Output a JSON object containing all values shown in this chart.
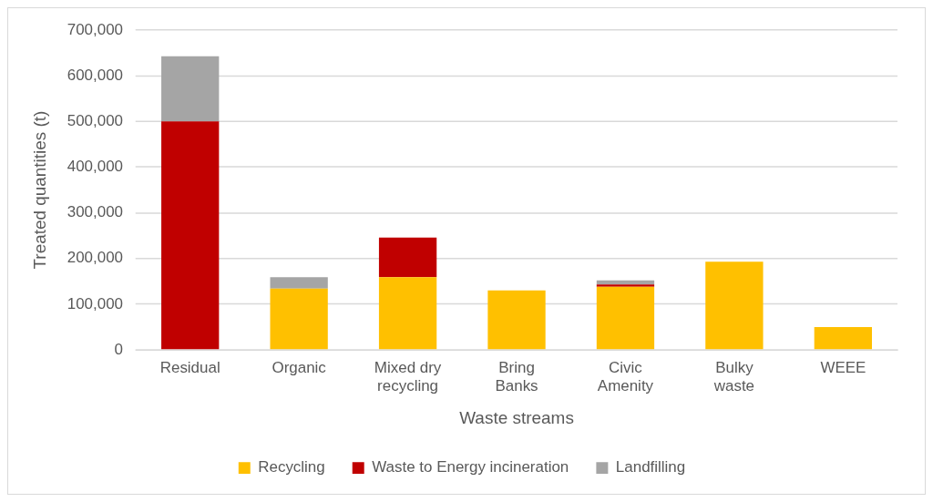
{
  "chart_data": {
    "type": "bar",
    "stacked": true,
    "xlabel": "Waste streams",
    "ylabel": "Treated quantities (t)",
    "categories": [
      "Residual",
      "Organic",
      "Mixed dry recycling",
      "Bring Banks",
      "Civic Amenity",
      "Bulky waste",
      "WEEE"
    ],
    "series": [
      {
        "name": "Recycling",
        "color": "#ffc000",
        "values": [
          0,
          134000,
          159000,
          130000,
          138000,
          193000,
          50000
        ]
      },
      {
        "name": "Waste to Energy incineration",
        "color": "#c00000",
        "values": [
          500000,
          0,
          87000,
          0,
          5000,
          0,
          0
        ]
      },
      {
        "name": "Landfilling",
        "color": "#a5a5a5",
        "values": [
          143000,
          25000,
          0,
          0,
          9000,
          0,
          0
        ]
      }
    ],
    "ylim": [
      0,
      700000
    ],
    "yticks": [
      {
        "value": 0,
        "label": "0"
      },
      {
        "value": 100000,
        "label": "100,000"
      },
      {
        "value": 200000,
        "label": "200,000"
      },
      {
        "value": 300000,
        "label": "300,000"
      },
      {
        "value": 400000,
        "label": "400,000"
      },
      {
        "value": 500000,
        "label": "500,000"
      },
      {
        "value": 600000,
        "label": "600,000"
      },
      {
        "value": 700000,
        "label": "700,000"
      }
    ],
    "grid": "y",
    "legend": "bottom"
  }
}
